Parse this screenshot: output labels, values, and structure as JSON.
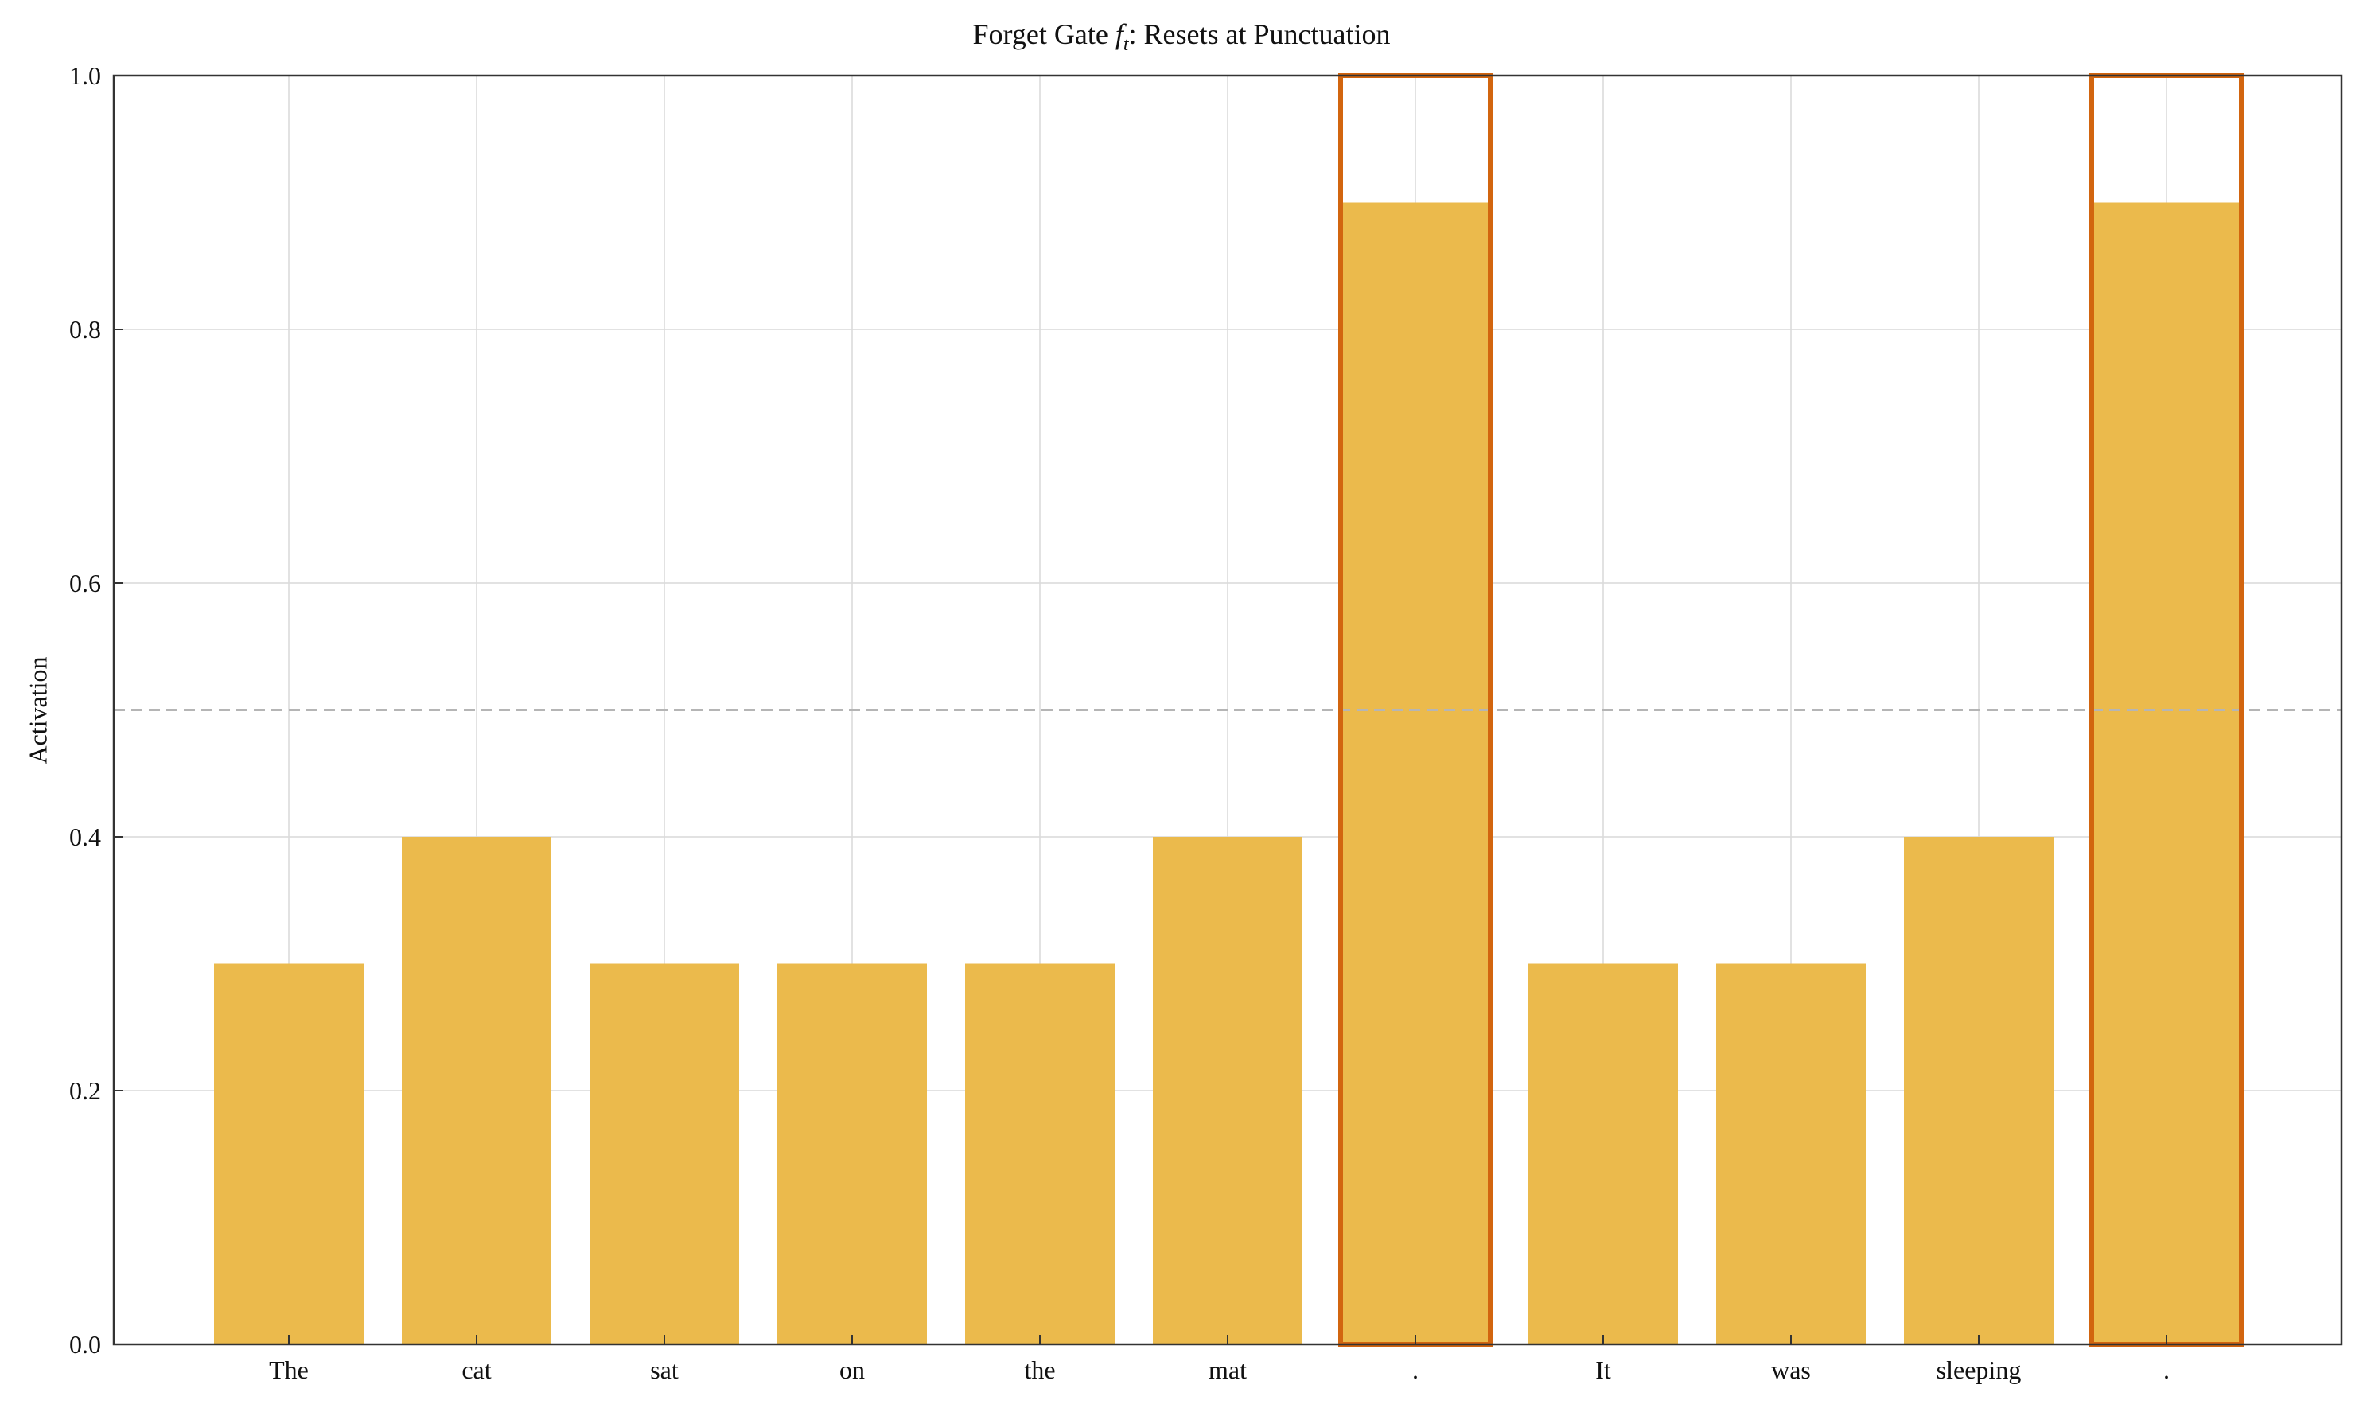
{
  "chart_data": {
    "type": "bar",
    "title_prefix": "Forget Gate",
    "title_symbol": "f",
    "title_subscript": "t",
    "title_suffix": ": Resets at Punctuation",
    "xlabel": "",
    "ylabel": "Activation",
    "categories": [
      "The",
      "cat",
      "sat",
      "on",
      "the",
      "mat",
      ".",
      "It",
      "was",
      "sleeping",
      "."
    ],
    "values": [
      0.3,
      0.4,
      0.3,
      0.3,
      0.3,
      0.4,
      0.9,
      0.3,
      0.3,
      0.4,
      0.9
    ],
    "highlighted_indices": [
      6,
      10
    ],
    "highlight_box_top": 1.0,
    "reference_line": 0.5,
    "ylim": [
      0,
      1.0
    ],
    "yticks": [
      "0.0",
      "0.2",
      "0.4",
      "0.6",
      "0.8",
      "1.0"
    ],
    "grid": true,
    "colors": {
      "bar": "#ebba4c",
      "highlight_edge": "#d2650f",
      "reference_line": "#b5b5b5",
      "grid": "#d9d9d9",
      "axis": "#333333"
    }
  }
}
